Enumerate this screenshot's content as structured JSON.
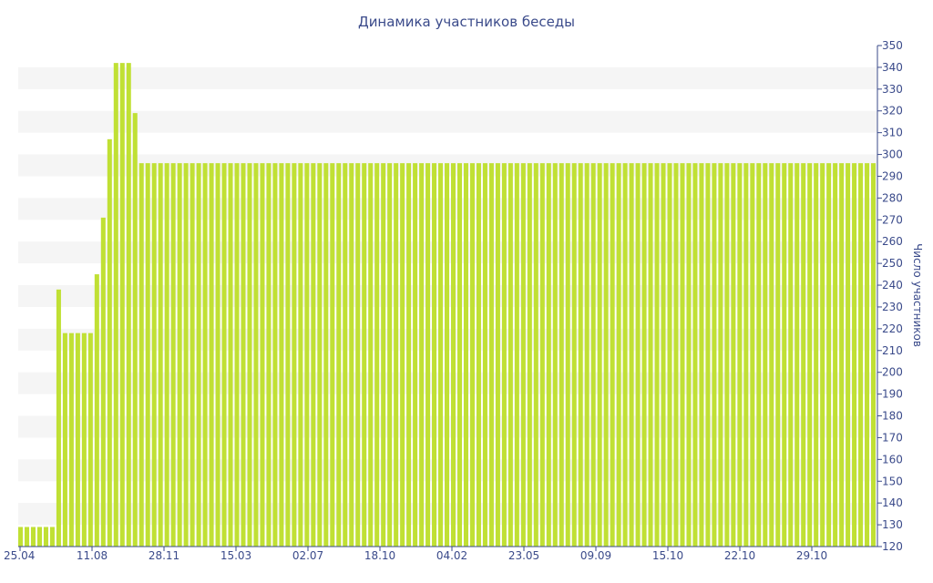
{
  "chart_data": {
    "type": "bar",
    "title": "Динамика участников беседы",
    "xlabel": "",
    "ylabel": "Число участников",
    "ylim": [
      120,
      350
    ],
    "yticks": [
      120,
      130,
      140,
      150,
      160,
      170,
      180,
      190,
      200,
      210,
      220,
      230,
      240,
      250,
      260,
      270,
      280,
      290,
      300,
      310,
      320,
      330,
      340,
      350
    ],
    "y_axis_side": "right",
    "grid": "horizontal bands",
    "legend": "none",
    "colors": {
      "bar": "#c0e034",
      "band": "#f5f5f5",
      "text": "#3a4a8a"
    },
    "x_tick_labels": [
      "25.04",
      "11.08",
      "28.11",
      "15.03",
      "02.07",
      "18.10",
      "04.02",
      "23.05",
      "09.09",
      "15.10",
      "22.10",
      "29.10"
    ],
    "values": [
      129,
      129,
      129,
      129,
      129,
      129,
      238,
      218,
      218,
      218,
      218,
      218,
      245,
      271,
      307,
      342,
      342,
      342,
      319,
      296,
      296,
      296,
      296,
      296,
      296,
      296,
      296,
      296,
      296,
      296,
      296,
      296,
      296,
      296,
      296,
      296,
      296,
      296,
      296,
      296,
      296,
      296,
      296,
      296,
      296,
      296,
      296,
      296,
      296,
      296,
      296,
      296,
      296,
      296,
      296,
      296,
      296,
      296,
      296,
      296,
      296,
      296,
      296,
      296,
      296,
      296,
      296,
      296,
      296,
      296,
      296,
      296,
      296,
      296,
      296,
      296,
      296,
      296,
      296,
      296,
      296,
      296,
      296,
      296,
      296,
      296,
      296,
      296,
      296,
      296,
      296,
      296,
      296,
      296,
      296,
      296,
      296,
      296,
      296,
      296,
      296,
      296,
      296,
      296,
      296,
      296,
      296,
      296,
      296,
      296,
      296,
      296,
      296,
      296,
      296,
      296,
      296,
      296,
      296,
      296,
      296,
      296,
      296,
      296,
      296,
      296,
      296,
      296,
      296,
      296,
      296,
      296,
      296,
      296,
      296
    ]
  }
}
